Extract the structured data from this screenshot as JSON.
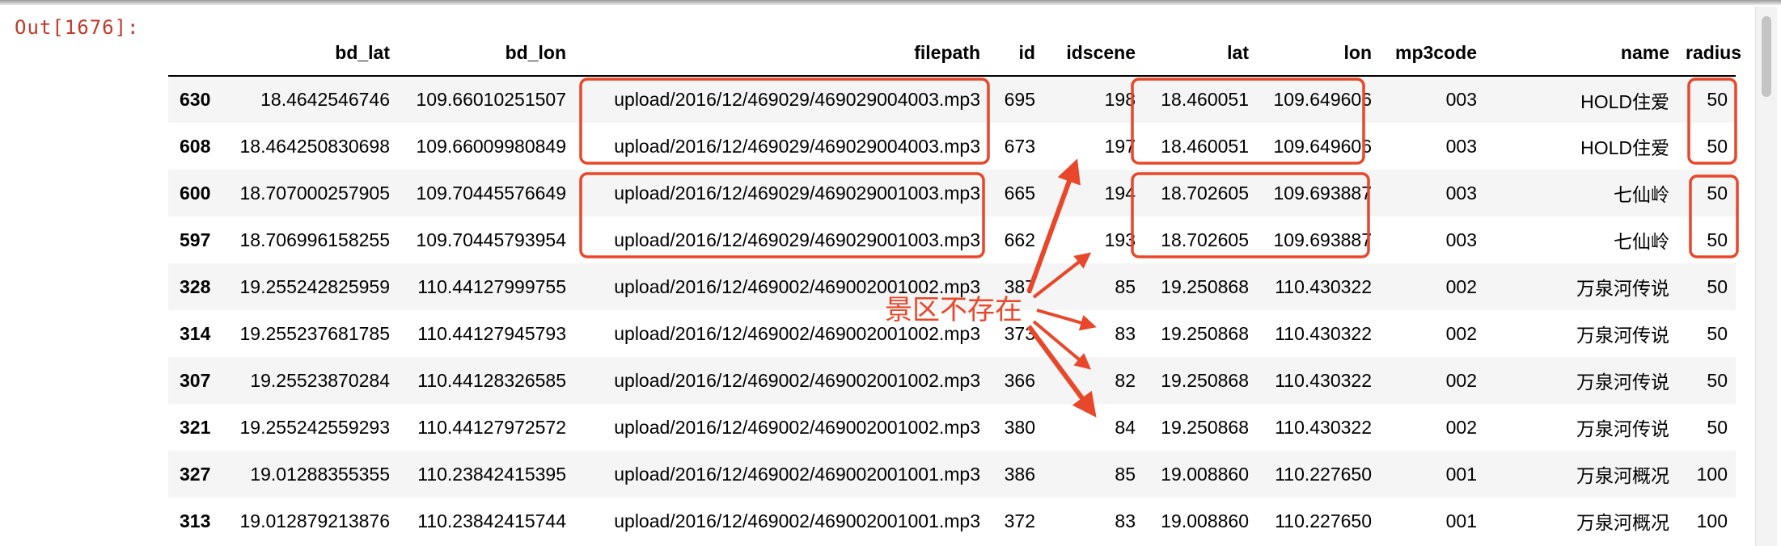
{
  "cell": {
    "out_prompt": "Out[1676]:"
  },
  "table": {
    "columns": [
      "",
      "bd_lat",
      "bd_lon",
      "filepath",
      "id",
      "idscene",
      "lat",
      "lon",
      "mp3code",
      "name",
      "radius"
    ],
    "rows": [
      {
        "index": "630",
        "bd_lat": "18.4642546746",
        "bd_lon": "109.66010251507",
        "filepath": "upload/2016/12/469029/469029004003.mp3",
        "id": "695",
        "idscene": "198",
        "lat": "18.460051",
        "lon": "109.649606",
        "mp3code": "003",
        "name": "HOLD住爱",
        "radius": "50"
      },
      {
        "index": "608",
        "bd_lat": "18.464250830698",
        "bd_lon": "109.66009980849",
        "filepath": "upload/2016/12/469029/469029004003.mp3",
        "id": "673",
        "idscene": "197",
        "lat": "18.460051",
        "lon": "109.649606",
        "mp3code": "003",
        "name": "HOLD住爱",
        "radius": "50"
      },
      {
        "index": "600",
        "bd_lat": "18.707000257905",
        "bd_lon": "109.70445576649",
        "filepath": "upload/2016/12/469029/469029001003.mp3",
        "id": "665",
        "idscene": "194",
        "lat": "18.702605",
        "lon": "109.693887",
        "mp3code": "003",
        "name": "七仙岭",
        "radius": "50"
      },
      {
        "index": "597",
        "bd_lat": "18.706996158255",
        "bd_lon": "109.70445793954",
        "filepath": "upload/2016/12/469029/469029001003.mp3",
        "id": "662",
        "idscene": "193",
        "lat": "18.702605",
        "lon": "109.693887",
        "mp3code": "003",
        "name": "七仙岭",
        "radius": "50"
      },
      {
        "index": "328",
        "bd_lat": "19.255242825959",
        "bd_lon": "110.44127999755",
        "filepath": "upload/2016/12/469002/469002001002.mp3",
        "id": "387",
        "idscene": "85",
        "lat": "19.250868",
        "lon": "110.430322",
        "mp3code": "002",
        "name": "万泉河传说",
        "radius": "50"
      },
      {
        "index": "314",
        "bd_lat": "19.255237681785",
        "bd_lon": "110.44127945793",
        "filepath": "upload/2016/12/469002/469002001002.mp3",
        "id": "373",
        "idscene": "83",
        "lat": "19.250868",
        "lon": "110.430322",
        "mp3code": "002",
        "name": "万泉河传说",
        "radius": "50"
      },
      {
        "index": "307",
        "bd_lat": "19.25523870284",
        "bd_lon": "110.44128326585",
        "filepath": "upload/2016/12/469002/469002001002.mp3",
        "id": "366",
        "idscene": "82",
        "lat": "19.250868",
        "lon": "110.430322",
        "mp3code": "002",
        "name": "万泉河传说",
        "radius": "50"
      },
      {
        "index": "321",
        "bd_lat": "19.255242559293",
        "bd_lon": "110.44127972572",
        "filepath": "upload/2016/12/469002/469002001002.mp3",
        "id": "380",
        "idscene": "84",
        "lat": "19.250868",
        "lon": "110.430322",
        "mp3code": "002",
        "name": "万泉河传说",
        "radius": "50"
      },
      {
        "index": "327",
        "bd_lat": "19.01288355355",
        "bd_lon": "110.23842415395",
        "filepath": "upload/2016/12/469002/469002001001.mp3",
        "id": "386",
        "idscene": "85",
        "lat": "19.008860",
        "lon": "110.227650",
        "mp3code": "001",
        "name": "万泉河概况",
        "radius": "100"
      },
      {
        "index": "313",
        "bd_lat": "19.012879213876",
        "bd_lon": "110.23842415744",
        "filepath": "upload/2016/12/469002/469002001001.mp3",
        "id": "372",
        "idscene": "83",
        "lat": "19.008860",
        "lon": "110.227650",
        "mp3code": "001",
        "name": "万泉河概况",
        "radius": "100"
      }
    ]
  },
  "annotation": {
    "label": "景区不存在",
    "color": "#e8472a"
  }
}
